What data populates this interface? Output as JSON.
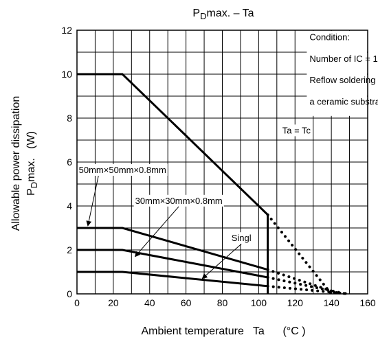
{
  "chart_data": {
    "type": "line",
    "title_main": "P",
    "title_sub": "D",
    "title_rest": "max. – Ta",
    "xlabel": "Ambient temperature   Ta      (°C )",
    "ylabel_line1": "Allowable power dissipation",
    "ylabel_line2_main": "P",
    "ylabel_line2_sub": "D",
    "ylabel_line2_rest": "max.   (W)",
    "xlim": [
      0,
      160
    ],
    "ylim": [
      0,
      12
    ],
    "x_major_ticks": [
      0,
      20,
      40,
      60,
      80,
      100,
      120,
      140,
      160
    ],
    "y_major_ticks": [
      0,
      2,
      4,
      6,
      8,
      10,
      12
    ],
    "grid": true,
    "condition": {
      "lines": [
        "Condition:",
        "Number of IC = 1",
        "Reflow soldering on",
        "a ceramic substrate"
      ]
    },
    "series": [
      {
        "name": "Ta = Tc",
        "solid": [
          [
            0,
            10
          ],
          [
            25,
            10
          ],
          [
            105,
            3.6
          ],
          [
            105,
            0
          ]
        ],
        "dotted": [
          [
            105,
            3.6
          ],
          [
            140,
            0
          ]
        ]
      },
      {
        "name": "50mm×50mm×0.8mm",
        "solid": [
          [
            0,
            3
          ],
          [
            25,
            3
          ],
          [
            105,
            1.1
          ]
        ],
        "dotted": [
          [
            105,
            1.1
          ],
          [
            145,
            0
          ]
        ]
      },
      {
        "name": "30mm×30mm×0.8mm",
        "solid": [
          [
            0,
            2
          ],
          [
            25,
            2
          ],
          [
            105,
            0.75
          ]
        ],
        "dotted": [
          [
            105,
            0.75
          ],
          [
            148,
            0
          ]
        ]
      },
      {
        "name": "Singl",
        "solid": [
          [
            0,
            1
          ],
          [
            25,
            1
          ],
          [
            105,
            0.35
          ]
        ],
        "dotted": [
          [
            105,
            0.35
          ],
          [
            150,
            0
          ]
        ]
      }
    ],
    "annotations": [
      {
        "text": "Ta = Tc",
        "label_x": 113,
        "label_y": 7.3
      },
      {
        "text": "50mm×50mm×0.8mm",
        "label_x": 1,
        "label_y": 5.5,
        "arrow_to": [
          6,
          3.1
        ]
      },
      {
        "text": "30mm×30mm×0.8mm",
        "label_x": 32,
        "label_y": 4.1,
        "arrow_to": [
          32,
          1.7
        ]
      },
      {
        "text": "Singl",
        "label_x": 85,
        "label_y": 2.4,
        "arrow_to": [
          69,
          0.7
        ]
      }
    ]
  }
}
